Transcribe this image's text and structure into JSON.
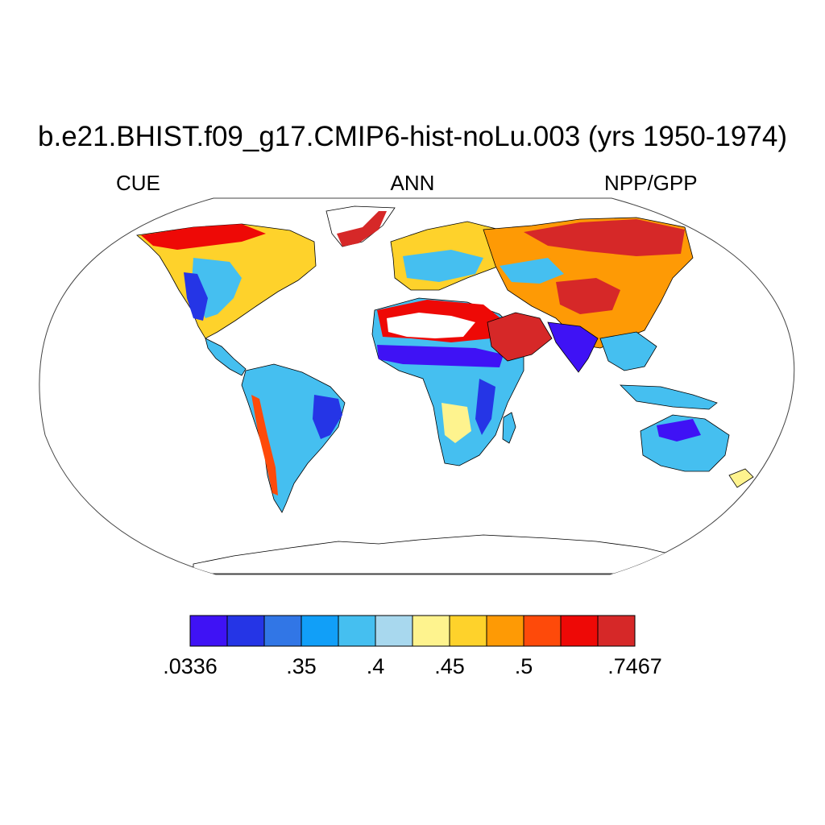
{
  "title": "b.e21.BHIST.f09_g17.CMIP6-hist-noLu.003 (yrs 1950-1974)",
  "left_string": "CUE",
  "center_string": "ANN",
  "right_string": "NPP/GPP",
  "map": {
    "projection": "Robinson",
    "variable": "NPP/GPP",
    "season": "ANN",
    "ocean_fill": "#ffffff",
    "coastline_color": "#000000"
  },
  "colorbar": {
    "colors": [
      "#3f12f5",
      "#2535e6",
      "#3176e6",
      "#119ff8",
      "#45bff0",
      "#a8d8ee",
      "#fef38e",
      "#fed22b",
      "#fe9a05",
      "#fe4a0a",
      "#ee0906",
      "#d62828"
    ],
    "labels": [
      ".0336",
      ".35",
      ".4",
      ".45",
      ".5",
      ".7467"
    ],
    "label_boundary_index": [
      0,
      3,
      5,
      7,
      9,
      12
    ]
  },
  "chart_data": {
    "type": "heatmap",
    "title": "b.e21.BHIST.f09_g17.CMIP6-hist-noLu.003 (yrs 1950-1974)",
    "left_string": "CUE",
    "center_string": "ANN",
    "right_string": "NPP/GPP",
    "levels_min": 0.0336,
    "levels_max": 0.7467,
    "labeled_levels": [
      0.0336,
      0.35,
      0.4,
      0.45,
      0.5,
      0.7467
    ]
  }
}
